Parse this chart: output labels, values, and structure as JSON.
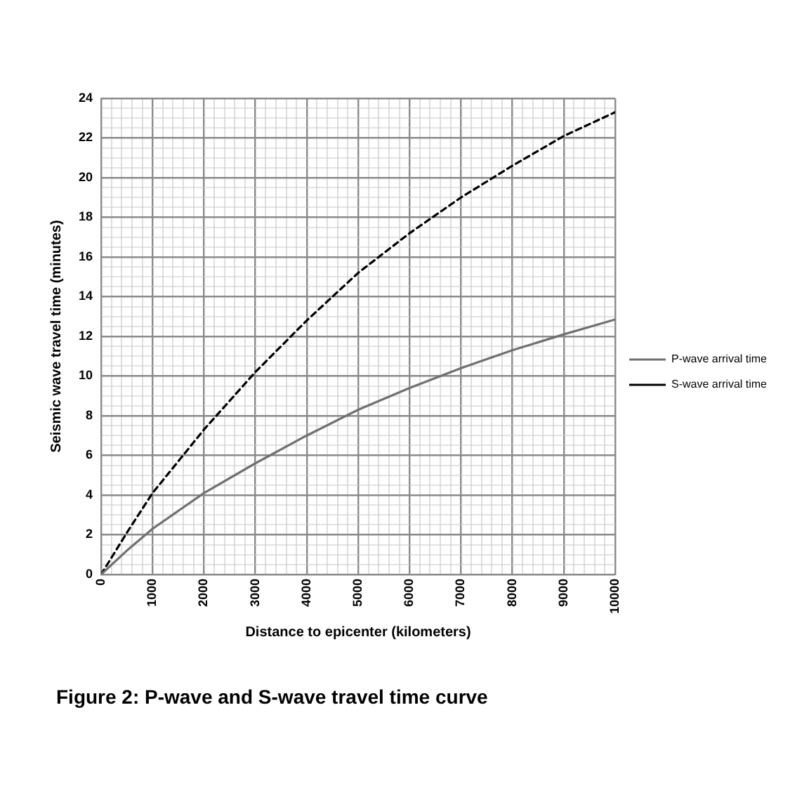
{
  "chart_data": {
    "type": "line",
    "xlabel": "Distance to epicenter (kilometers)",
    "ylabel": "Seismic wave travel time (minutes)",
    "annotations": [
      "Figure 2:  P-wave and S-wave travel time curve"
    ],
    "x": [
      0,
      500,
      1000,
      2000,
      3000,
      4000,
      5000,
      6000,
      7000,
      8000,
      9000,
      10000
    ],
    "series": [
      {
        "name": "P-wave arrival time",
        "color": "#707070",
        "line_style": "solid",
        "values": [
          0,
          1.2,
          2.3,
          4.1,
          5.6,
          7.0,
          8.3,
          9.4,
          10.4,
          11.3,
          12.1,
          12.85
        ]
      },
      {
        "name": "S-wave arrival time",
        "color": "#000000",
        "line_style": "dashed",
        "values": [
          0,
          2.1,
          4.1,
          7.3,
          10.2,
          12.8,
          15.2,
          17.2,
          19.0,
          20.6,
          22.1,
          23.3
        ]
      }
    ],
    "xlim": [
      0,
      10000
    ],
    "xticks": [
      0,
      {
        "value": 200,
        "label": null
      },
      {
        "value": 400,
        "label": null
      },
      {
        "value": 600,
        "label": null
      },
      {
        "value": 800,
        "label": null
      },
      1000,
      {
        "value": 1200,
        "label": null
      },
      {
        "value": 1400,
        "label": null
      },
      {
        "value": 1600,
        "label": null
      },
      {
        "value": 1800,
        "label": null
      },
      2000,
      {
        "value": 2200,
        "label": null
      },
      {
        "value": 2400,
        "label": null
      },
      {
        "value": 2600,
        "label": null
      },
      {
        "value": 2800,
        "label": null
      },
      3000,
      {
        "value": 3200,
        "label": null
      },
      {
        "value": 3400,
        "label": null
      },
      {
        "value": 3600,
        "label": null
      },
      {
        "value": 3800,
        "label": null
      },
      4000,
      {
        "value": 4200,
        "label": null
      },
      {
        "value": 4400,
        "label": null
      },
      {
        "value": 4600,
        "label": null
      },
      {
        "value": 4800,
        "label": null
      },
      5000,
      {
        "value": 5200,
        "label": null
      },
      {
        "value": 5400,
        "label": null
      },
      {
        "value": 5600,
        "label": null
      },
      {
        "value": 5800,
        "label": null
      },
      6000,
      {
        "value": 6200,
        "label": null
      },
      {
        "value": 6400,
        "label": null
      },
      {
        "value": 6600,
        "label": null
      },
      {
        "value": 6800,
        "label": null
      },
      7000,
      {
        "value": 7200,
        "label": null
      },
      {
        "value": 7400,
        "label": null
      },
      {
        "value": 7600,
        "label": null
      },
      {
        "value": 7800,
        "label": null
      },
      8000,
      {
        "value": 8200,
        "label": null
      },
      {
        "value": 8400,
        "label": null
      },
      {
        "value": 8600,
        "label": null
      },
      {
        "value": 8800,
        "label": null
      },
      9000,
      {
        "value": 9200,
        "label": null
      },
      {
        "value": 9400,
        "label": null
      },
      {
        "value": 9600,
        "label": null
      },
      {
        "value": 9800,
        "label": null
      },
      10000
    ],
    "ylim": [
      0,
      24
    ],
    "yticks": [
      0,
      {
        "value": 0.5,
        "label": null
      },
      {
        "value": 1,
        "label": null
      },
      {
        "value": 1.5,
        "label": null
      },
      2,
      {
        "value": 2.5,
        "label": null
      },
      {
        "value": 3,
        "label": null
      },
      {
        "value": 3.5,
        "label": null
      },
      4,
      {
        "value": 4.5,
        "label": null
      },
      {
        "value": 5,
        "label": null
      },
      {
        "value": 5.5,
        "label": null
      },
      6,
      {
        "value": 6.5,
        "label": null
      },
      {
        "value": 7,
        "label": null
      },
      {
        "value": 7.5,
        "label": null
      },
      8,
      {
        "value": 8.5,
        "label": null
      },
      {
        "value": 9,
        "label": null
      },
      {
        "value": 9.5,
        "label": null
      },
      10,
      {
        "value": 10.5,
        "label": null
      },
      {
        "value": 11,
        "label": null
      },
      {
        "value": 11.5,
        "label": null
      },
      12,
      {
        "value": 12.5,
        "label": null
      },
      {
        "value": 13,
        "label": null
      },
      {
        "value": 13.5,
        "label": null
      },
      14,
      {
        "value": 14.5,
        "label": null
      },
      {
        "value": 15,
        "label": null
      },
      {
        "value": 15.5,
        "label": null
      },
      16,
      {
        "value": 16.5,
        "label": null
      },
      {
        "value": 17,
        "label": null
      },
      {
        "value": 17.5,
        "label": null
      },
      18,
      {
        "value": 18.5,
        "label": null
      },
      {
        "value": 19,
        "label": null
      },
      {
        "value": 19.5,
        "label": null
      },
      20,
      {
        "value": 20.5,
        "label": null
      },
      {
        "value": 21,
        "label": null
      },
      {
        "value": 21.5,
        "label": null
      },
      22,
      {
        "value": 22.5,
        "label": null
      },
      {
        "value": 23,
        "label": null
      },
      {
        "value": 23.5,
        "label": null
      },
      24
    ],
    "grid": true,
    "legend": "right",
    "marker": "none"
  }
}
